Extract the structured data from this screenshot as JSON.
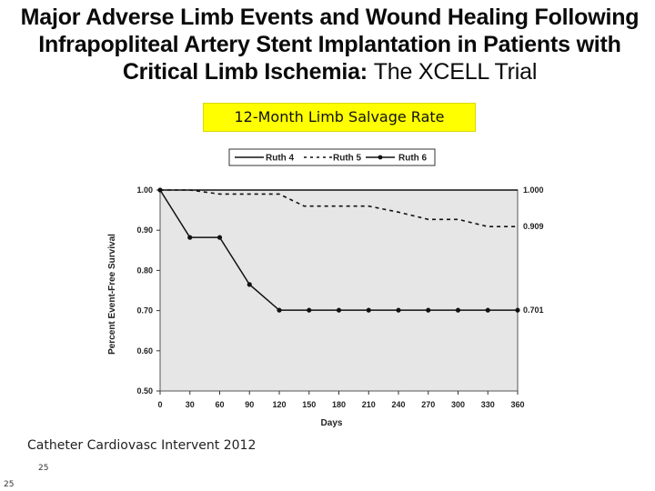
{
  "slide": {
    "title_bold": "Major Adverse Limb Events and Wound Healing Following Infrapopliteal Artery Stent Implantation in Patients with Critical Limb Ischemia:",
    "title_light": "The XCELL Trial",
    "banner": "12-Month Limb Salvage Rate",
    "citation": "Catheter Cardiovasc Intervent 2012",
    "slide_number_a": "25",
    "slide_number_b": "25"
  },
  "chart_data": {
    "type": "line",
    "xlabel": "Days",
    "ylabel": "Percent Event-Free Survival",
    "xlim": [
      0,
      360
    ],
    "ylim": [
      0.5,
      1.0
    ],
    "x_ticks": [
      0,
      30,
      60,
      90,
      120,
      150,
      180,
      210,
      240,
      270,
      300,
      330,
      360
    ],
    "y_ticks": [
      0.5,
      0.6,
      0.7,
      0.8,
      0.9,
      1.0
    ],
    "y_tick_labels": [
      "0.50",
      "0.60",
      "0.70",
      "0.80",
      "0.90",
      "1.00"
    ],
    "legend_position": "top",
    "plot_background": "#e6e6e6",
    "series": [
      {
        "name": "Ruth 4",
        "style": "solid",
        "markers": false,
        "points": [
          [
            0,
            1.0
          ],
          [
            360,
            1.0
          ]
        ],
        "end_label": "1.000"
      },
      {
        "name": "Ruth 5",
        "style": "dashed",
        "markers": false,
        "points": [
          [
            0,
            1.0
          ],
          [
            30,
            1.0
          ],
          [
            60,
            0.99
          ],
          [
            120,
            0.99
          ],
          [
            145,
            0.96
          ],
          [
            210,
            0.96
          ],
          [
            240,
            0.945
          ],
          [
            270,
            0.927
          ],
          [
            300,
            0.927
          ],
          [
            330,
            0.909
          ],
          [
            360,
            0.909
          ]
        ],
        "end_label": "0.909"
      },
      {
        "name": "Ruth 6",
        "style": "solid",
        "markers": true,
        "points": [
          [
            0,
            1.0
          ],
          [
            30,
            0.882
          ],
          [
            60,
            0.882
          ],
          [
            90,
            0.765
          ],
          [
            120,
            0.701
          ],
          [
            150,
            0.701
          ],
          [
            180,
            0.701
          ],
          [
            210,
            0.701
          ],
          [
            240,
            0.701
          ],
          [
            270,
            0.701
          ],
          [
            300,
            0.701
          ],
          [
            330,
            0.701
          ],
          [
            360,
            0.701
          ]
        ],
        "end_label": "0.701"
      }
    ]
  }
}
